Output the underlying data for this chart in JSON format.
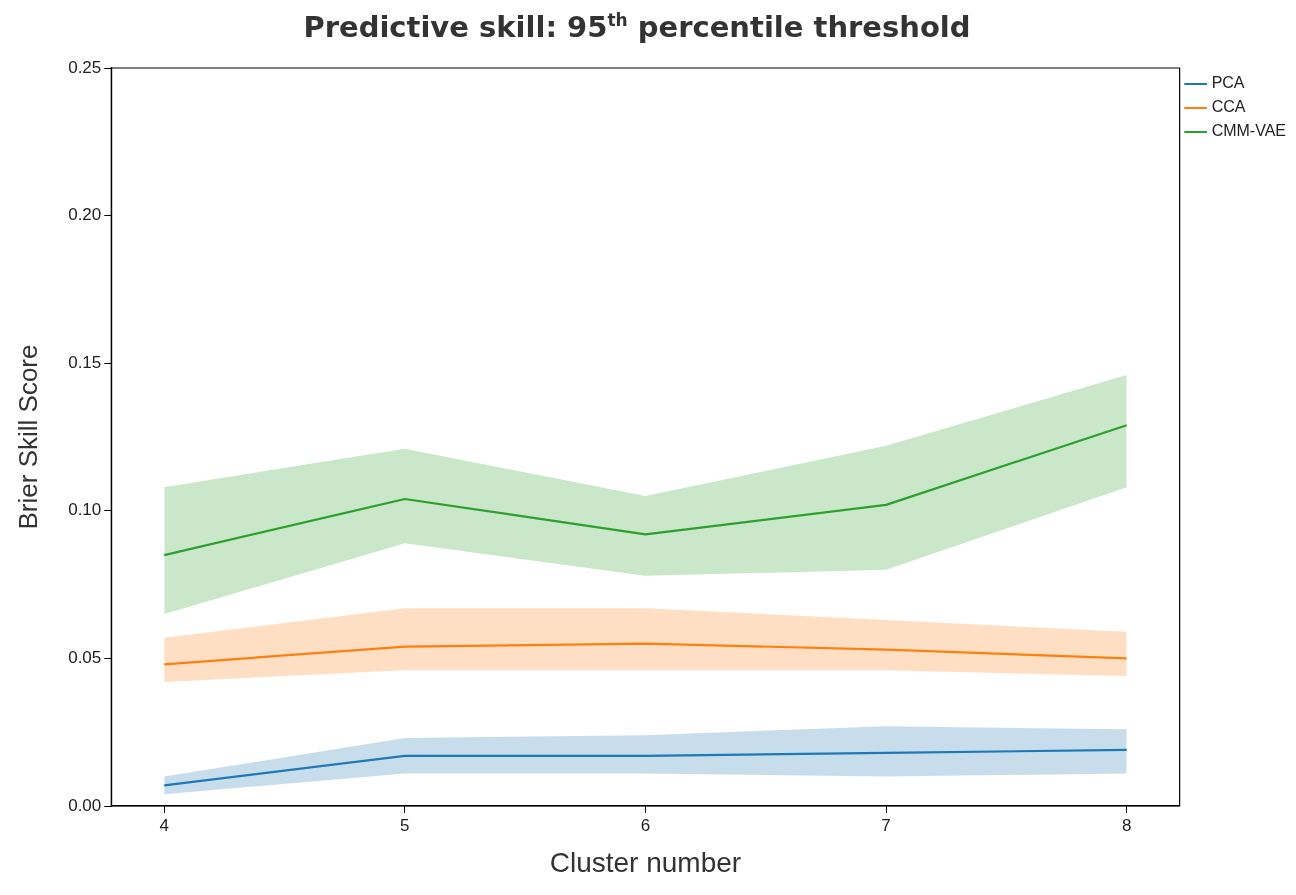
{
  "chart_data": {
    "type": "line",
    "title": "Predictive skill: 95$^{th}$ percentile threshold",
    "xlabel": "Cluster number",
    "ylabel": "Brier Skill Score",
    "x": [
      4,
      5,
      6,
      7,
      8
    ],
    "series": [
      {
        "name": "PCA",
        "color": "#1f77b4",
        "values": [
          0.007,
          0.017,
          0.017,
          0.018,
          0.019
        ],
        "lower": [
          0.004,
          0.011,
          0.011,
          0.01,
          0.011
        ],
        "upper": [
          0.01,
          0.023,
          0.024,
          0.027,
          0.026
        ]
      },
      {
        "name": "CCA",
        "color": "#ff7f0e",
        "values": [
          0.048,
          0.054,
          0.055,
          0.053,
          0.05
        ],
        "lower": [
          0.042,
          0.046,
          0.046,
          0.046,
          0.044
        ],
        "upper": [
          0.057,
          0.067,
          0.067,
          0.063,
          0.059
        ]
      },
      {
        "name": "CMM-VAE",
        "color": "#2ca02c",
        "values": [
          0.085,
          0.104,
          0.092,
          0.102,
          0.129
        ],
        "lower": [
          0.065,
          0.089,
          0.078,
          0.08,
          0.108
        ],
        "upper": [
          0.108,
          0.121,
          0.105,
          0.122,
          0.146
        ]
      }
    ],
    "xlim": [
      3.78,
      8.22
    ],
    "xticks": [
      4,
      5,
      6,
      7,
      8
    ],
    "ylim": [
      0,
      0.25
    ],
    "yticks": [
      {
        "value": 0,
        "label": "0.00"
      },
      {
        "value": 0.05,
        "label": "0.05"
      },
      {
        "value": 0.1,
        "label": "0.10"
      },
      {
        "value": 0.15,
        "label": "0.15"
      },
      {
        "value": 0.2,
        "label": "0.20"
      },
      {
        "value": 0.25,
        "label": "0.25"
      }
    ],
    "grid": false,
    "legend": "top right",
    "marker": "none",
    "line_style": "solid"
  }
}
